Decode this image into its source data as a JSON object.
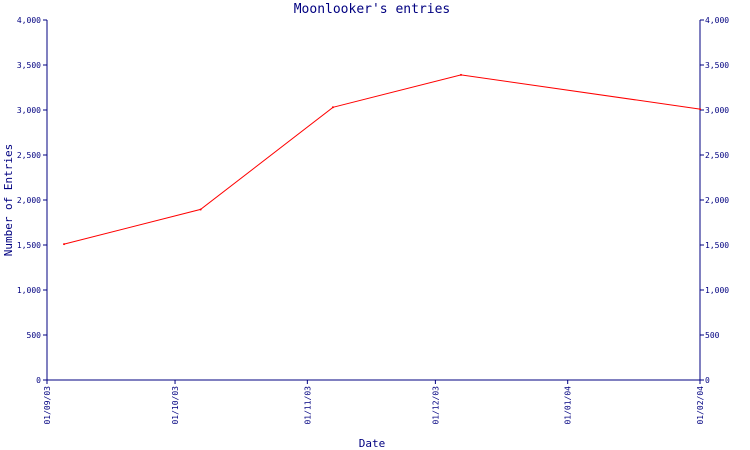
{
  "chart_data": {
    "type": "line",
    "title": "Moonlooker's entries",
    "xlabel": "Date",
    "ylabel": "Number of Entries",
    "ylim": [
      0,
      4000
    ],
    "xlim": [
      "2003-09-01",
      "2004-02-01"
    ],
    "x_ticks": [
      {
        "date": "2003-09-01",
        "label": "01/09/03"
      },
      {
        "date": "2003-10-01",
        "label": "01/10/03"
      },
      {
        "date": "2003-11-01",
        "label": "01/11/03"
      },
      {
        "date": "2003-12-01",
        "label": "01/12/03"
      },
      {
        "date": "2004-01-01",
        "label": "01/01/04"
      },
      {
        "date": "2004-02-01",
        "label": "01/02/04"
      }
    ],
    "y_ticks": [
      {
        "value": 0,
        "label": "0"
      },
      {
        "value": 500,
        "label": "500"
      },
      {
        "value": 1000,
        "label": "1,000"
      },
      {
        "value": 1500,
        "label": "1,500"
      },
      {
        "value": 2000,
        "label": "2,000"
      },
      {
        "value": 2500,
        "label": "2,500"
      },
      {
        "value": 3000,
        "label": "3,000"
      },
      {
        "value": 3500,
        "label": "3,500"
      },
      {
        "value": 4000,
        "label": "4,000"
      }
    ],
    "grid": false,
    "series": [
      {
        "color": "#ff0000",
        "points": [
          {
            "x": "2003-09-05",
            "y": 1510
          },
          {
            "x": "2003-10-07",
            "y": 1895
          },
          {
            "x": "2003-11-07",
            "y": 3030
          },
          {
            "x": "2003-12-07",
            "y": 3390
          },
          {
            "x": "2004-02-01",
            "y": 3010
          }
        ]
      }
    ],
    "colors": {
      "axis": "#000080",
      "text": "#000080",
      "line": "#ff0000"
    }
  }
}
